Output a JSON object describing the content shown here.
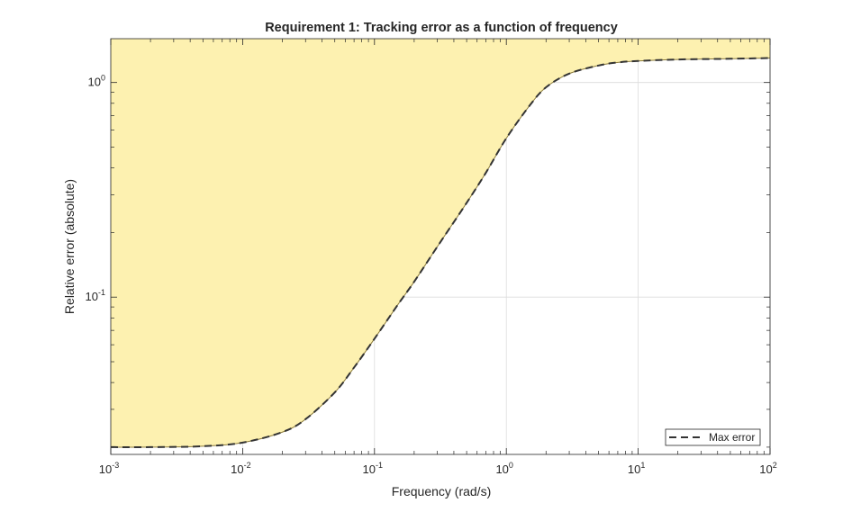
{
  "chart_data": {
    "type": "line",
    "title": "Requirement 1: Tracking error as a function of frequency",
    "xlabel": "Frequency (rad/s)",
    "ylabel": "Relative error (absolute)",
    "xscale": "log",
    "yscale": "log",
    "xlim": [
      0.001,
      100
    ],
    "ylim": [
      0.0185,
      1.6
    ],
    "grid": true,
    "x_ticks": [
      {
        "base": "10",
        "exp": "-3",
        "value": 0.001
      },
      {
        "base": "10",
        "exp": "-2",
        "value": 0.01
      },
      {
        "base": "10",
        "exp": "-1",
        "value": 0.1
      },
      {
        "base": "10",
        "exp": "0",
        "value": 1
      },
      {
        "base": "10",
        "exp": "1",
        "value": 10
      },
      {
        "base": "10",
        "exp": "2",
        "value": 100
      }
    ],
    "y_ticks": [
      {
        "base": "10",
        "exp": "-1",
        "value": 0.1
      },
      {
        "base": "10",
        "exp": "0",
        "value": 1
      }
    ],
    "series": [
      {
        "name": "Max error",
        "style": "dashed",
        "color": "#333333",
        "shaded_region": "above",
        "shade_color": "#fdf1b0",
        "x": [
          0.001,
          0.002,
          0.005,
          0.01,
          0.02,
          0.03,
          0.05,
          0.07,
          0.1,
          0.15,
          0.2,
          0.3,
          0.5,
          0.7,
          1.0,
          1.5,
          2.0,
          3.0,
          5.0,
          7.0,
          10,
          20,
          50,
          100
        ],
        "values": [
          0.02,
          0.02,
          0.0202,
          0.021,
          0.0235,
          0.027,
          0.036,
          0.047,
          0.064,
          0.092,
          0.118,
          0.172,
          0.275,
          0.38,
          0.55,
          0.78,
          0.95,
          1.1,
          1.2,
          1.24,
          1.26,
          1.28,
          1.29,
          1.3
        ]
      }
    ],
    "legend": {
      "position": "bottom-right",
      "entries": [
        "Max error"
      ]
    }
  },
  "colors": {
    "shade": "#fdf1b0",
    "line": "#333333",
    "grid": "#dcdcdc",
    "axis": "#262626"
  }
}
